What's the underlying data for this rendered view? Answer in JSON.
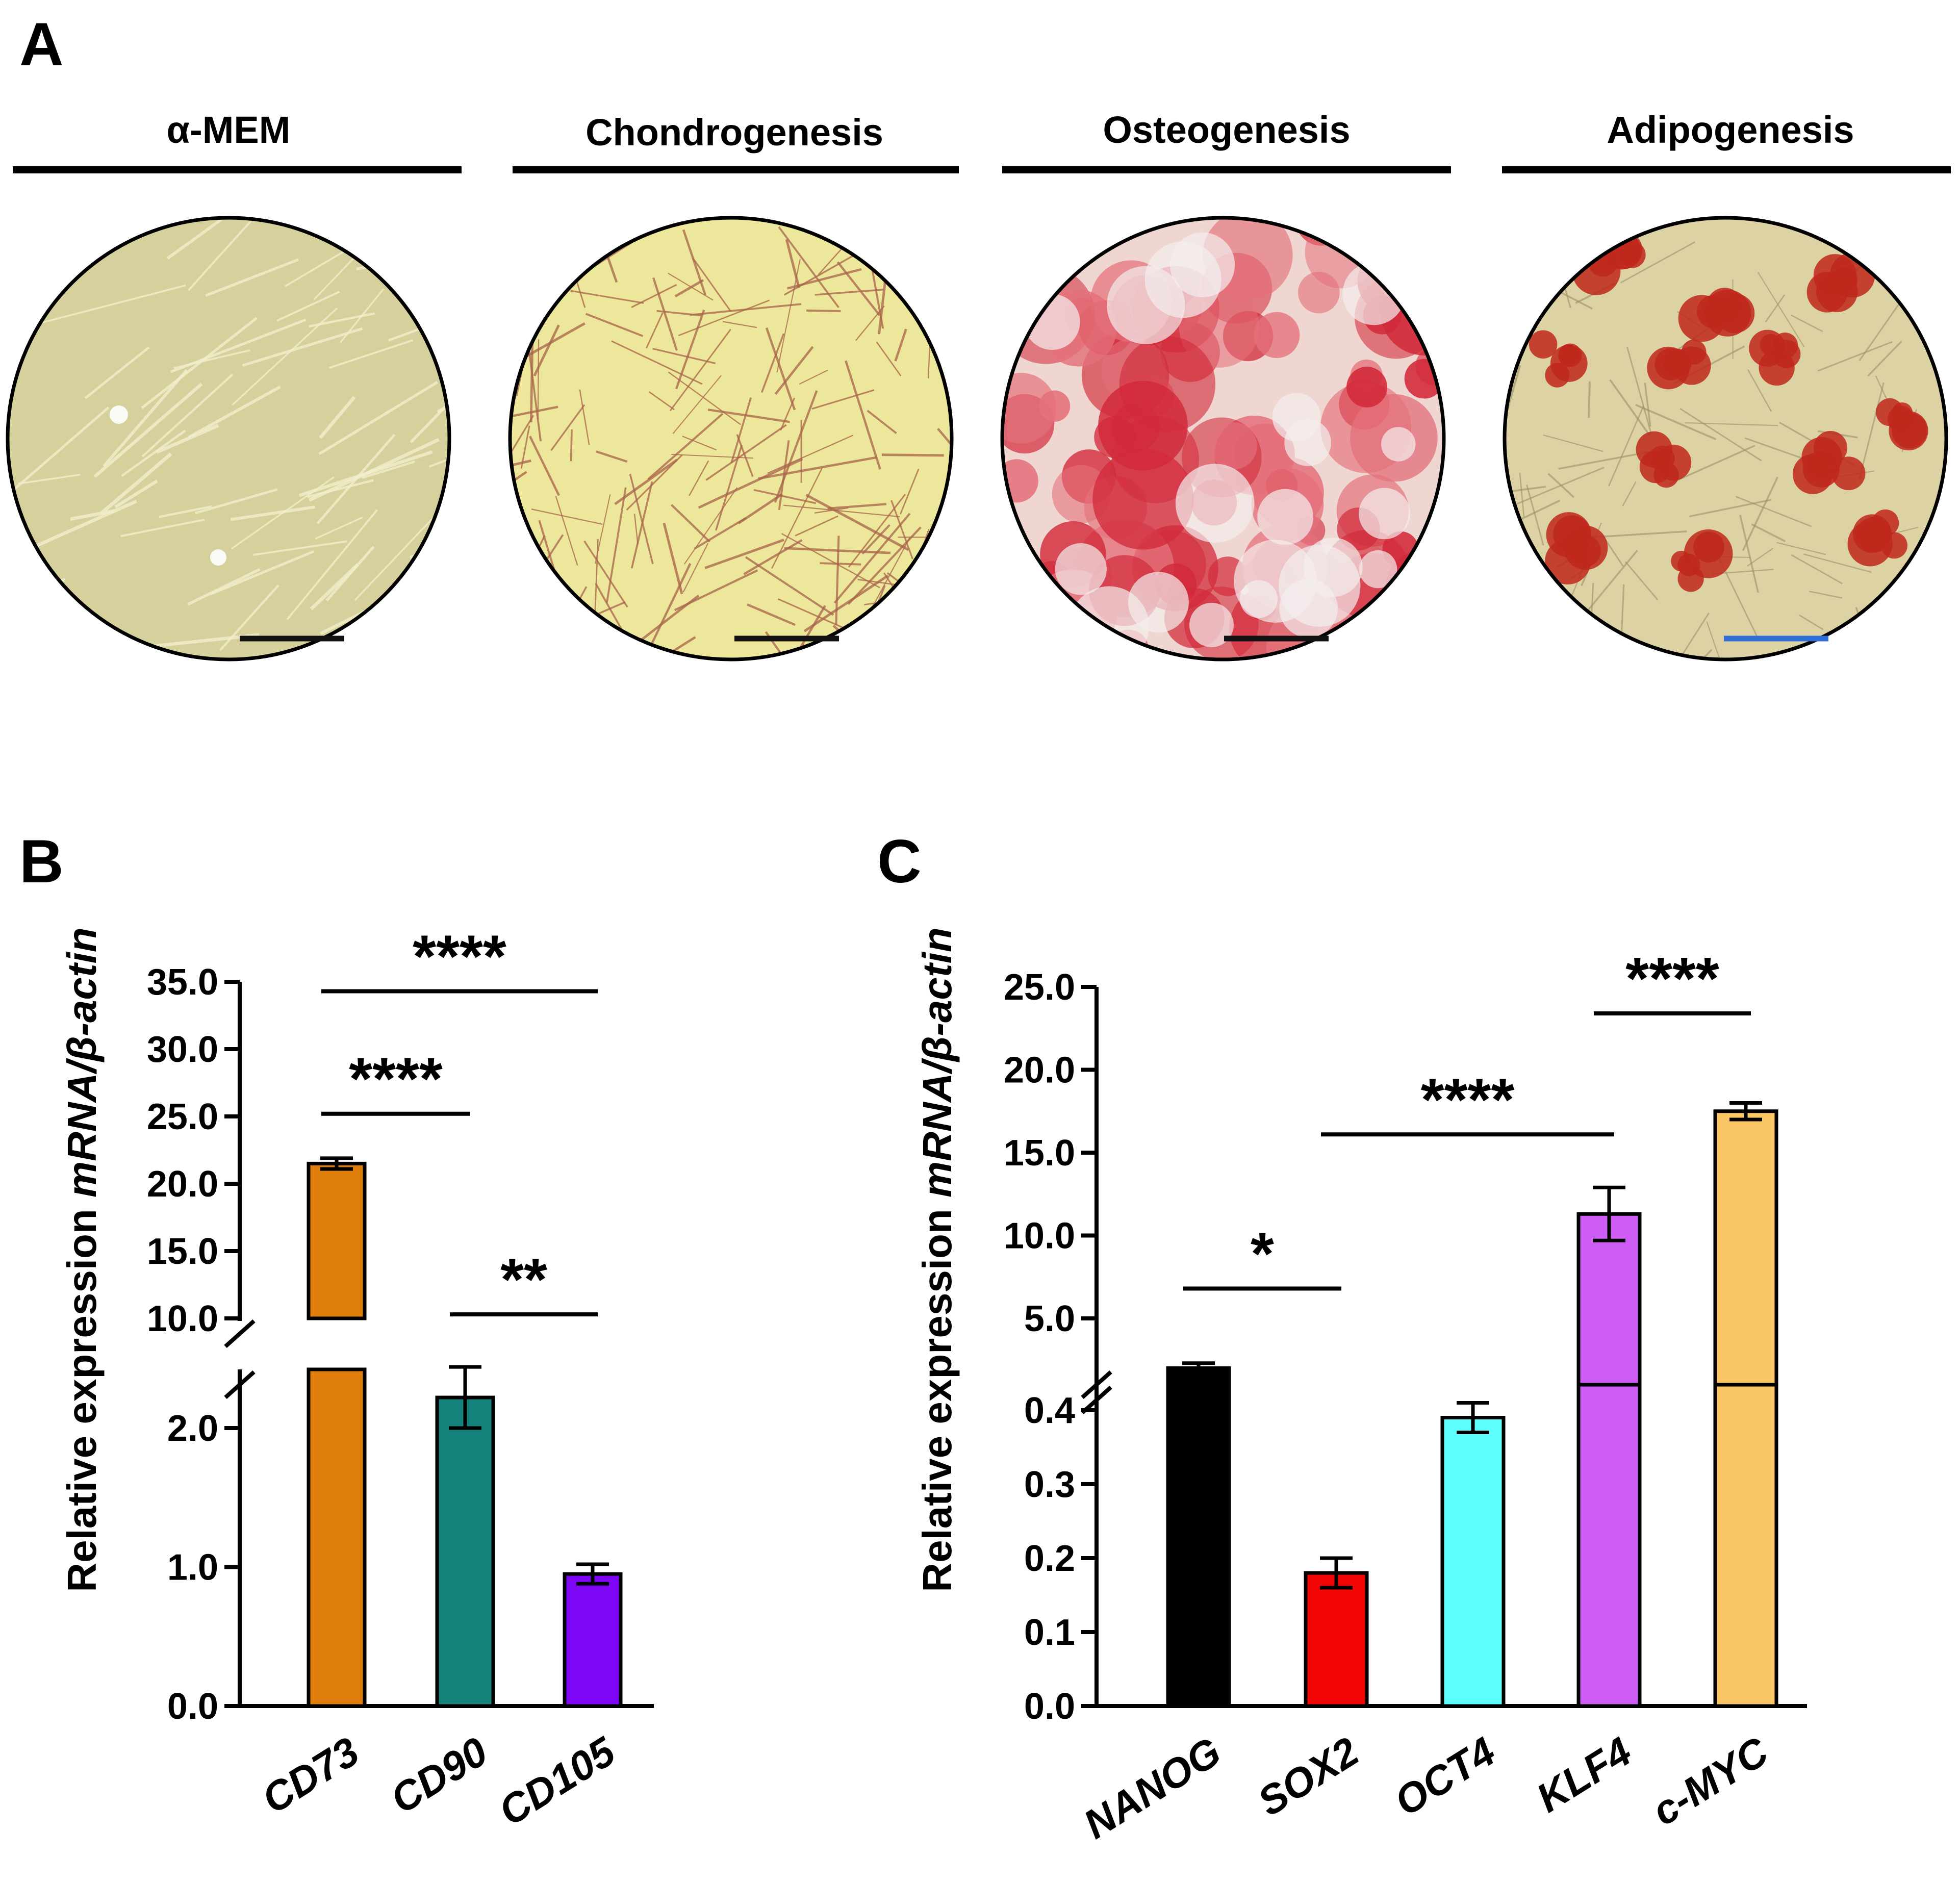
{
  "panel_a": {
    "letter": "A",
    "conditions": [
      {
        "label": "α-MEM",
        "scale_bar_color": "#111111",
        "tint": "#d6d19c",
        "stain": "none"
      },
      {
        "label": "Chondrogenesis",
        "scale_bar_color": "#111111",
        "tint": "#ece79a",
        "stain": "fibrous"
      },
      {
        "label": "Osteogenesis",
        "scale_bar_color": "#111111",
        "tint": "#efd6d0",
        "stain": "mineral"
      },
      {
        "label": "Adipogenesis",
        "scale_bar_color": "#2f6fd6",
        "tint": "#ddd2a4",
        "stain": "lipid"
      }
    ]
  },
  "chart_data": [
    {
      "panel": "B",
      "type": "bar",
      "ylabel_plain": "Relative expression ",
      "ylabel_italic": "mRNA/β-actin",
      "y_axis_break": true,
      "upper_ticks": [
        "35.0",
        "30.0",
        "25.0",
        "20.0",
        "15.0",
        "10.0"
      ],
      "lower_ticks": [
        "2.0",
        "1.0",
        "0.0"
      ],
      "upper_range": [
        10,
        35
      ],
      "lower_range": [
        0,
        2.5
      ],
      "categories": [
        "CD73",
        "CD90",
        "CD105"
      ],
      "values": [
        21.5,
        2.22,
        0.95
      ],
      "errors": [
        0.4,
        0.22,
        0.07
      ],
      "colors": [
        "#e07e0b",
        "#16827c",
        "#7e05f5"
      ],
      "significance": [
        {
          "from": 0,
          "to": 2,
          "label": "****",
          "axis": "upper",
          "y": 34.3
        },
        {
          "from": 0,
          "to": 1,
          "label": "****",
          "axis": "upper",
          "y": 25.2
        },
        {
          "from": 1,
          "to": 2,
          "label": "**",
          "axis": "upper",
          "y": 10.3
        }
      ]
    },
    {
      "panel": "C",
      "type": "bar",
      "ylabel_plain": "Relative expression ",
      "ylabel_italic": "mRNA/β-actin",
      "y_axis_break": true,
      "upper_ticks": [
        "25.0",
        "20.0",
        "15.0",
        "10.0",
        "5.0"
      ],
      "lower_ticks": [
        "0.4",
        "0.3",
        "0.2",
        "0.1",
        "0.0"
      ],
      "upper_range": [
        1,
        25
      ],
      "lower_range": [
        0,
        0.45
      ],
      "categories": [
        "NANOG",
        "SOX2",
        "OCT4",
        "KLF4",
        "c-MYC"
      ],
      "values": [
        2.0,
        0.18,
        0.39,
        11.3,
        17.5
      ],
      "errors": [
        0.3,
        0.02,
        0.02,
        1.6,
        0.5
      ],
      "colors": [
        "#000000",
        "#f20505",
        "#5effff",
        "#cd5cf5",
        "#fbc766"
      ],
      "significance": [
        {
          "from": 0,
          "to": 1,
          "label": "*",
          "axis": "upper",
          "y": 6.8
        },
        {
          "from": 1,
          "to": 3,
          "label": "****",
          "axis": "upper",
          "y": 16.1
        },
        {
          "from": 3,
          "to": 4,
          "label": "****",
          "axis": "upper",
          "y": 23.4
        }
      ]
    }
  ]
}
